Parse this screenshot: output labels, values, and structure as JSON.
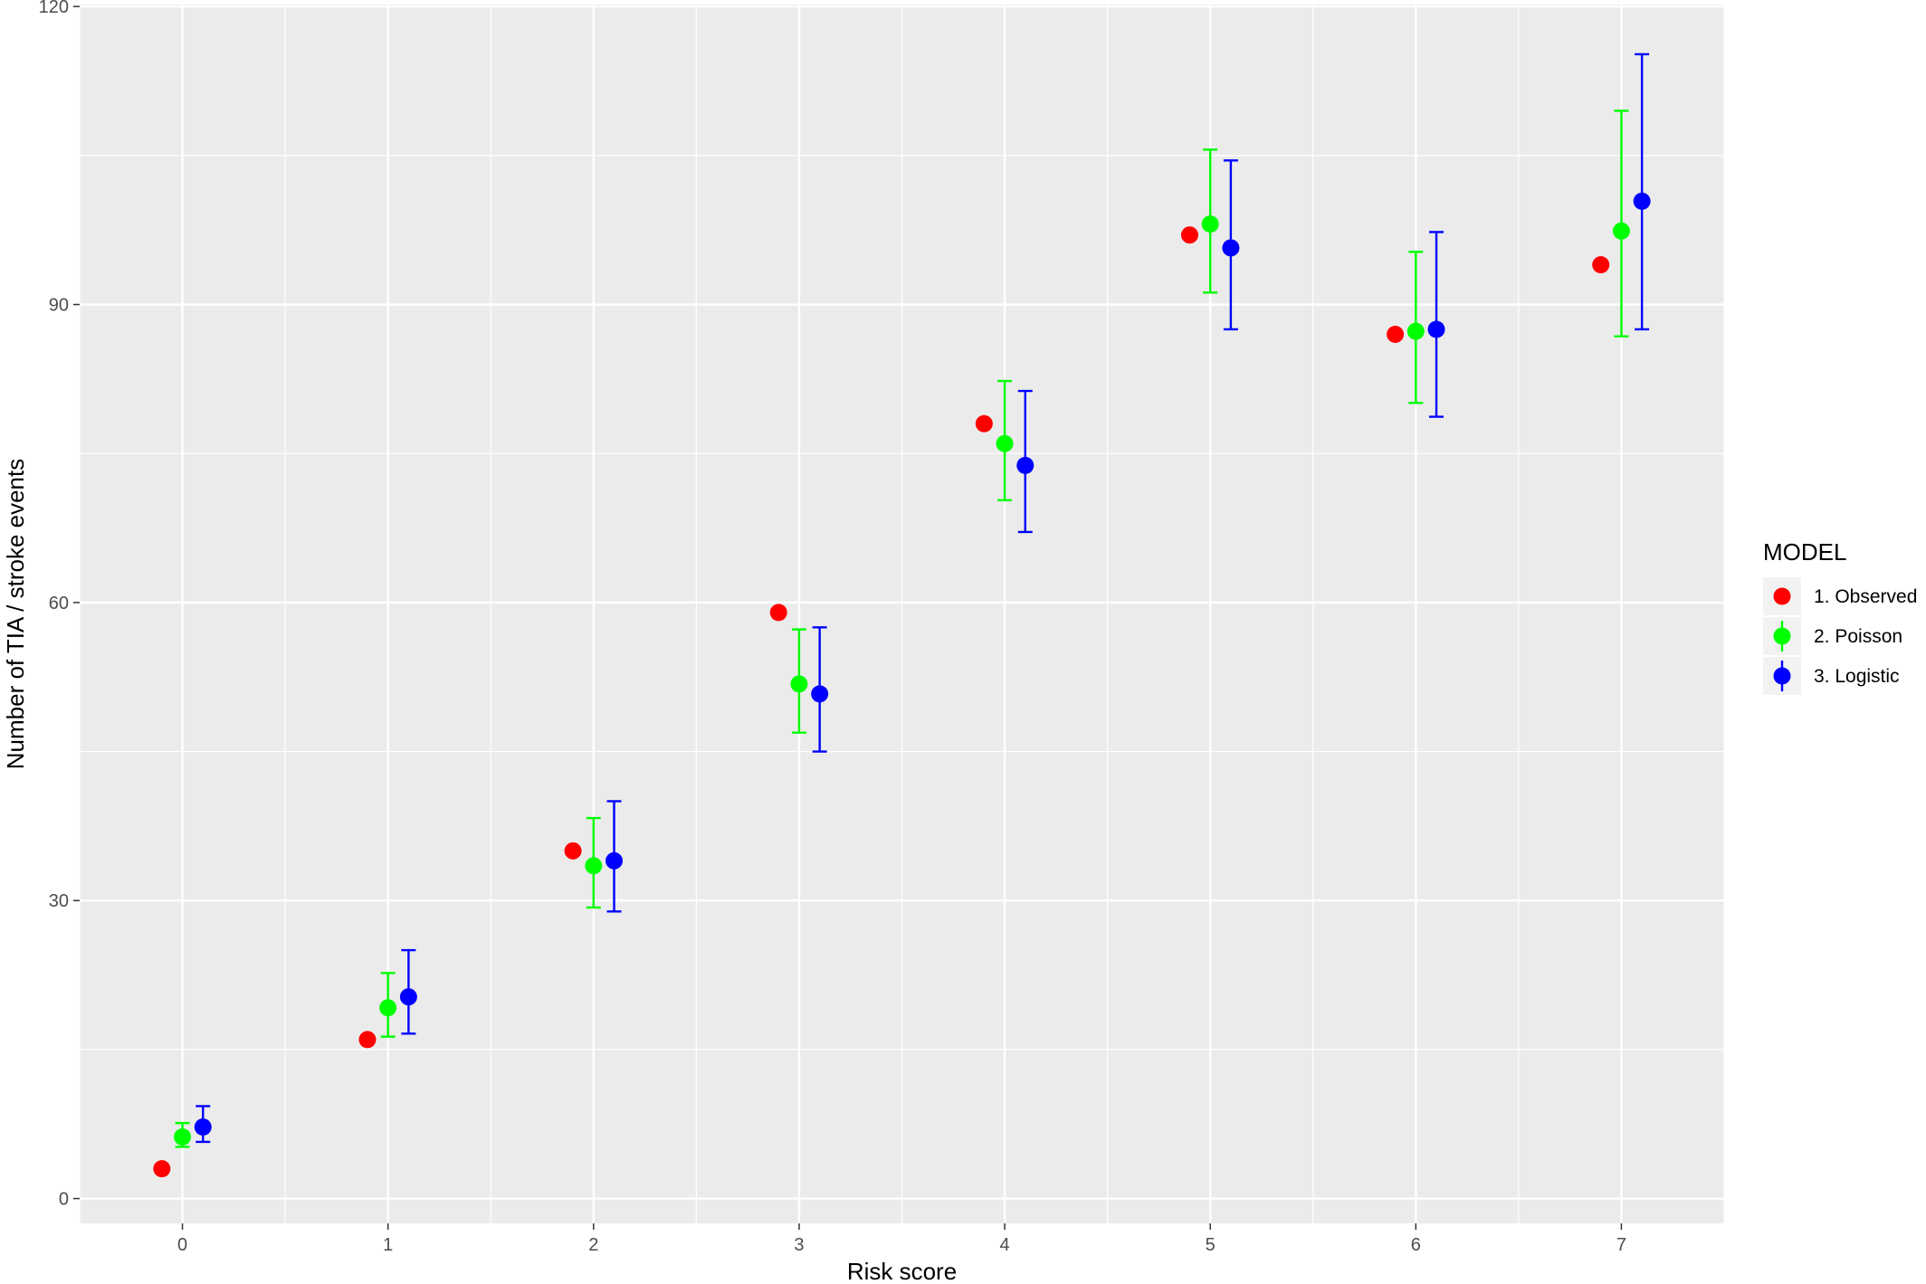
{
  "chart_data": {
    "type": "scatter",
    "xlabel": "Risk score",
    "ylabel": "Number of TIA / stroke events",
    "x_ticks": [
      0,
      1,
      2,
      3,
      4,
      5,
      6,
      7
    ],
    "y_ticks": [
      0,
      30,
      60,
      90,
      120
    ],
    "xlim": [
      -0.5,
      7.5
    ],
    "ylim": [
      -2.5,
      120.2
    ],
    "grid": true,
    "legend": {
      "title": "MODEL",
      "position": "right"
    },
    "series": [
      {
        "name": "1. Observed",
        "color": "#ff0000",
        "offset": -0.1,
        "points": [
          {
            "x": 0,
            "y": 3
          },
          {
            "x": 1,
            "y": 16
          },
          {
            "x": 2,
            "y": 35
          },
          {
            "x": 3,
            "y": 59
          },
          {
            "x": 4,
            "y": 78
          },
          {
            "x": 5,
            "y": 97
          },
          {
            "x": 6,
            "y": 87
          },
          {
            "x": 7,
            "y": 94
          }
        ]
      },
      {
        "name": "2. Poisson",
        "color": "#00ff00",
        "offset": 0,
        "points": [
          {
            "x": 0,
            "y": 6.2,
            "lo": 5.2,
            "hi": 7.6
          },
          {
            "x": 1,
            "y": 19.2,
            "lo": 16.3,
            "hi": 22.7
          },
          {
            "x": 2,
            "y": 33.5,
            "lo": 29.3,
            "hi": 38.3
          },
          {
            "x": 3,
            "y": 51.8,
            "lo": 46.9,
            "hi": 57.3
          },
          {
            "x": 4,
            "y": 76.0,
            "lo": 70.3,
            "hi": 82.3
          },
          {
            "x": 5,
            "y": 98.1,
            "lo": 91.2,
            "hi": 105.6
          },
          {
            "x": 6,
            "y": 87.3,
            "lo": 80.1,
            "hi": 95.3
          },
          {
            "x": 7,
            "y": 97.4,
            "lo": 86.8,
            "hi": 109.5
          }
        ]
      },
      {
        "name": "3. Logistic",
        "color": "#0000ff",
        "offset": 0.1,
        "points": [
          {
            "x": 0,
            "y": 7.2,
            "lo": 5.7,
            "hi": 9.3
          },
          {
            "x": 1,
            "y": 20.3,
            "lo": 16.6,
            "hi": 25.0
          },
          {
            "x": 2,
            "y": 34.0,
            "lo": 28.9,
            "hi": 40.0
          },
          {
            "x": 3,
            "y": 50.8,
            "lo": 45.0,
            "hi": 57.5
          },
          {
            "x": 4,
            "y": 73.8,
            "lo": 67.1,
            "hi": 81.3
          },
          {
            "x": 5,
            "y": 95.7,
            "lo": 87.5,
            "hi": 104.5
          },
          {
            "x": 6,
            "y": 87.5,
            "lo": 78.7,
            "hi": 97.3
          },
          {
            "x": 7,
            "y": 100.4,
            "lo": 87.5,
            "hi": 115.2
          }
        ]
      }
    ]
  }
}
